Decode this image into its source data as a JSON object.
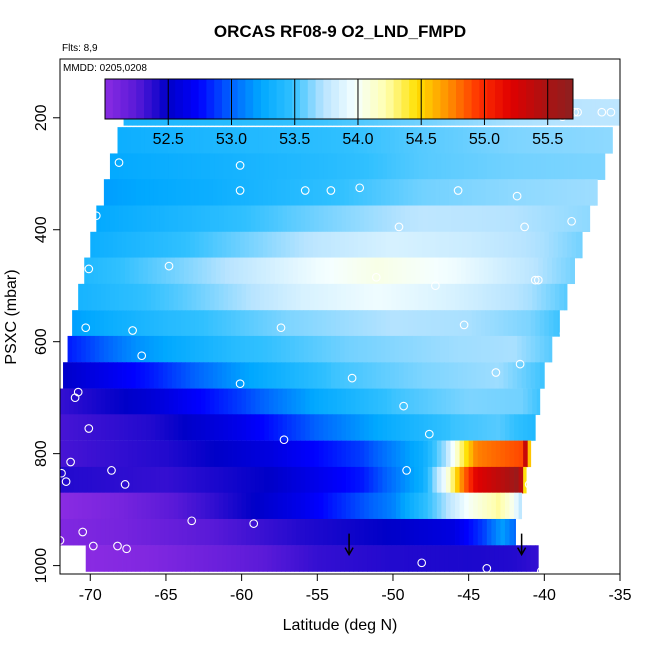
{
  "chart_data": {
    "type": "heatmap",
    "title": "ORCAS RF08-9 O2_LND_FMPD",
    "subtitle_flights": "Flts: 8,9",
    "subtitle_dates": "MMDD: 0205,0208",
    "xlabel": "Latitude (deg N)",
    "ylabel": "PSXC (mbar)",
    "xlim": [
      -72,
      -35
    ],
    "ylim": [
      1015,
      95
    ],
    "x_ticks": [
      -70,
      -65,
      -60,
      -55,
      -50,
      -45,
      -40,
      -35
    ],
    "y_ticks": [
      200,
      400,
      600,
      800,
      1000
    ],
    "colorbar": {
      "range": [
        52.0,
        55.7
      ],
      "ticks": [
        52.5,
        53.0,
        53.5,
        54.0,
        54.5,
        55.0,
        55.5
      ],
      "tick_labels": [
        "52.5",
        "53.0",
        "53.5",
        "54.0",
        "54.5",
        "55.0",
        "55.5"
      ],
      "colors": [
        "#8a2be2",
        "#5a1ad8",
        "#0000c8",
        "#0000ff",
        "#0060ff",
        "#00a8ff",
        "#30c0ff",
        "#b8e4ff",
        "#f5ffff",
        "#ffffb0",
        "#ffe000",
        "#ff9000",
        "#ff3000",
        "#e00000",
        "#b01010",
        "#8c2020"
      ]
    },
    "layers": [
      {
        "p": 190,
        "lat_min": -67.8,
        "lat_max": -35.0,
        "profile": [
          [
            -67.8,
            53.38
          ],
          [
            -62,
            53.42
          ],
          [
            -55,
            53.5
          ],
          [
            -48,
            53.6
          ],
          [
            -42,
            53.7
          ],
          [
            -35,
            53.75
          ]
        ]
      },
      {
        "p": 240,
        "lat_min": -68.2,
        "lat_max": -35.5,
        "profile": [
          [
            -68.2,
            53.3
          ],
          [
            -62,
            53.38
          ],
          [
            -55,
            53.45
          ],
          [
            -48,
            53.55
          ],
          [
            -42,
            53.62
          ],
          [
            -35.5,
            53.65
          ]
        ]
      },
      {
        "p": 287,
        "lat_min": -68.7,
        "lat_max": -36.0,
        "profile": [
          [
            -68.7,
            53.25
          ],
          [
            -62,
            53.32
          ],
          [
            -55,
            53.42
          ],
          [
            -48,
            53.55
          ],
          [
            -42,
            53.6
          ],
          [
            -36,
            53.62
          ]
        ]
      },
      {
        "p": 333,
        "lat_min": -69.1,
        "lat_max": -36.5,
        "profile": [
          [
            -69.1,
            53.2
          ],
          [
            -62,
            53.3
          ],
          [
            -55,
            53.45
          ],
          [
            -48,
            53.6
          ],
          [
            -42,
            53.65
          ],
          [
            -36.5,
            53.68
          ]
        ]
      },
      {
        "p": 380,
        "lat_min": -69.6,
        "lat_max": -37.0,
        "profile": [
          [
            -69.6,
            53.25
          ],
          [
            -63,
            53.4
          ],
          [
            -55,
            53.6
          ],
          [
            -48,
            53.75
          ],
          [
            -42,
            53.72
          ],
          [
            -37,
            53.65
          ]
        ]
      },
      {
        "p": 427,
        "lat_min": -70.0,
        "lat_max": -37.5,
        "profile": [
          [
            -70,
            53.3
          ],
          [
            -63,
            53.5
          ],
          [
            -55,
            53.75
          ],
          [
            -50,
            53.85
          ],
          [
            -45,
            53.8
          ],
          [
            -40,
            53.7
          ],
          [
            -37.5,
            53.6
          ]
        ]
      },
      {
        "p": 473,
        "lat_min": -70.4,
        "lat_max": -38.0,
        "profile": [
          [
            -70.4,
            53.4
          ],
          [
            -63,
            53.65
          ],
          [
            -55,
            53.95
          ],
          [
            -51,
            54.05
          ],
          [
            -46,
            53.95
          ],
          [
            -41,
            53.75
          ],
          [
            -38,
            53.6
          ]
        ]
      },
      {
        "p": 520,
        "lat_min": -70.8,
        "lat_max": -38.5,
        "profile": [
          [
            -70.8,
            53.35
          ],
          [
            -64,
            53.55
          ],
          [
            -56,
            53.85
          ],
          [
            -51,
            53.95
          ],
          [
            -46,
            53.85
          ],
          [
            -41,
            53.7
          ],
          [
            -38.5,
            53.55
          ]
        ]
      },
      {
        "p": 567,
        "lat_min": -71.2,
        "lat_max": -39.0,
        "profile": [
          [
            -71.2,
            53.2
          ],
          [
            -65,
            53.42
          ],
          [
            -57,
            53.62
          ],
          [
            -50,
            53.72
          ],
          [
            -45,
            53.7
          ],
          [
            -41,
            53.62
          ],
          [
            -39,
            53.5
          ]
        ]
      },
      {
        "p": 613,
        "lat_min": -71.5,
        "lat_max": -39.5,
        "profile": [
          [
            -71.5,
            52.8
          ],
          [
            -67,
            53.15
          ],
          [
            -60,
            53.45
          ],
          [
            -53,
            53.6
          ],
          [
            -46,
            53.68
          ],
          [
            -42,
            53.7
          ],
          [
            -39.5,
            53.55
          ]
        ]
      },
      {
        "p": 660,
        "lat_min": -71.8,
        "lat_max": -40.0,
        "profile": [
          [
            -71.8,
            52.5
          ],
          [
            -66,
            52.8
          ],
          [
            -60,
            53.2
          ],
          [
            -54,
            53.5
          ],
          [
            -48,
            53.62
          ],
          [
            -43,
            53.68
          ],
          [
            -40,
            53.5
          ]
        ]
      },
      {
        "p": 707,
        "lat_min": -72.0,
        "lat_max": -40.3,
        "profile": [
          [
            -72,
            52.35
          ],
          [
            -66,
            52.55
          ],
          [
            -60,
            52.9
          ],
          [
            -55,
            53.25
          ],
          [
            -50,
            53.5
          ],
          [
            -45,
            53.62
          ],
          [
            -41.5,
            53.6
          ],
          [
            -40.3,
            53.5
          ]
        ]
      },
      {
        "p": 753,
        "lat_min": -72.0,
        "lat_max": -40.6,
        "profile": [
          [
            -72,
            52.3
          ],
          [
            -66,
            52.4
          ],
          [
            -60,
            52.65
          ],
          [
            -55,
            53.0
          ],
          [
            -50,
            53.3
          ],
          [
            -46,
            53.5
          ],
          [
            -43,
            53.55
          ],
          [
            -40.6,
            53.4
          ]
        ]
      },
      {
        "p": 800,
        "lat_min": -72.0,
        "lat_max": -40.9,
        "profile": [
          [
            -72,
            52.3
          ],
          [
            -65,
            52.4
          ],
          [
            -58,
            52.6
          ],
          [
            -52,
            52.9
          ],
          [
            -48,
            53.3
          ],
          [
            -46.5,
            53.7
          ],
          [
            -45.5,
            54.3
          ],
          [
            -44.5,
            54.75
          ],
          [
            -42.5,
            54.85
          ],
          [
            -41.5,
            54.9
          ],
          [
            -41.1,
            55.6
          ],
          [
            -40.9,
            53.5
          ]
        ]
      },
      {
        "p": 847,
        "lat_min": -72.0,
        "lat_max": -41.2,
        "profile": [
          [
            -72,
            52.4
          ],
          [
            -65,
            52.35
          ],
          [
            -58,
            52.5
          ],
          [
            -52,
            52.8
          ],
          [
            -48,
            53.3
          ],
          [
            -46.5,
            54.0
          ],
          [
            -45.5,
            54.7
          ],
          [
            -44.5,
            55.2
          ],
          [
            -42.5,
            55.45
          ],
          [
            -41.8,
            55.6
          ],
          [
            -41.4,
            55.3
          ],
          [
            -41.2,
            53.6
          ]
        ]
      },
      {
        "p": 893,
        "lat_min": -72.0,
        "lat_max": -41.5,
        "profile": [
          [
            -72,
            52.0
          ],
          [
            -68,
            52.1
          ],
          [
            -62,
            52.35
          ],
          [
            -56,
            52.65
          ],
          [
            -50,
            53.1
          ],
          [
            -47,
            53.6
          ],
          [
            -45,
            54.0
          ],
          [
            -43,
            54.25
          ],
          [
            -42,
            54.0
          ],
          [
            -41.5,
            53.7
          ]
        ]
      },
      {
        "p": 940,
        "lat_min": -72.0,
        "lat_max": -41.9,
        "profile": [
          [
            -72,
            52.05
          ],
          [
            -68,
            52.1
          ],
          [
            -62,
            52.25
          ],
          [
            -56,
            52.4
          ],
          [
            -50,
            52.5
          ],
          [
            -46,
            52.6
          ],
          [
            -44,
            52.9
          ],
          [
            -42.8,
            53.2
          ],
          [
            -41.9,
            53.0
          ]
        ]
      },
      {
        "p": 987,
        "lat_min": -70.3,
        "lat_max": -40.4,
        "profile": [
          [
            -70.3,
            52.0
          ],
          [
            -66,
            52.05
          ],
          [
            -60,
            52.2
          ],
          [
            -55,
            52.35
          ],
          [
            -50,
            52.4
          ],
          [
            -45,
            52.42
          ],
          [
            -42,
            52.4
          ],
          [
            -40.4,
            52.35
          ]
        ]
      }
    ],
    "points": [
      [
        -67.6,
        190
      ],
      [
        -62.8,
        190
      ],
      [
        -60.4,
        190
      ],
      [
        -59.1,
        190
      ],
      [
        -56.9,
        190
      ],
      [
        -51.5,
        190
      ],
      [
        -38.8,
        198
      ],
      [
        -38.0,
        190
      ],
      [
        -37.8,
        190
      ],
      [
        -36.2,
        190
      ],
      [
        -35.6,
        190
      ],
      [
        -68.1,
        280
      ],
      [
        -60.1,
        285
      ],
      [
        -60.1,
        330
      ],
      [
        -55.8,
        330
      ],
      [
        -54.1,
        330
      ],
      [
        -52.2,
        325
      ],
      [
        -45.7,
        330
      ],
      [
        -41.8,
        340
      ],
      [
        -69.6,
        375
      ],
      [
        -49.6,
        395
      ],
      [
        -41.3,
        395
      ],
      [
        -38.2,
        385
      ],
      [
        -70.1,
        470
      ],
      [
        -64.8,
        465
      ],
      [
        -51.1,
        485
      ],
      [
        -47.2,
        500
      ],
      [
        -40.6,
        490
      ],
      [
        -40.4,
        490
      ],
      [
        -70.3,
        575
      ],
      [
        -67.2,
        580
      ],
      [
        -57.4,
        575
      ],
      [
        -45.3,
        570
      ],
      [
        -38.7,
        585
      ],
      [
        -66.6,
        625
      ],
      [
        -60.1,
        675
      ],
      [
        -71.0,
        700
      ],
      [
        -70.8,
        690
      ],
      [
        -52.7,
        665
      ],
      [
        -43.2,
        655
      ],
      [
        -41.6,
        640
      ],
      [
        -70.1,
        755
      ],
      [
        -57.2,
        775
      ],
      [
        -49.3,
        715
      ],
      [
        -47.6,
        765
      ],
      [
        -71.9,
        835
      ],
      [
        -71.6,
        850
      ],
      [
        -71.3,
        815
      ],
      [
        -68.6,
        830
      ],
      [
        -67.7,
        855
      ],
      [
        -49.1,
        830
      ],
      [
        -41.0,
        855
      ],
      [
        -72.0,
        955
      ],
      [
        -70.5,
        940
      ],
      [
        -69.8,
        965
      ],
      [
        -68.2,
        965
      ],
      [
        -67.6,
        970
      ],
      [
        -63.3,
        920
      ],
      [
        -59.2,
        925
      ],
      [
        -48.1,
        995
      ],
      [
        -43.8,
        1005
      ],
      [
        -40.2,
        1010
      ]
    ],
    "arrows": [
      [
        -52.9,
        975
      ],
      [
        -41.5,
        975
      ]
    ]
  }
}
